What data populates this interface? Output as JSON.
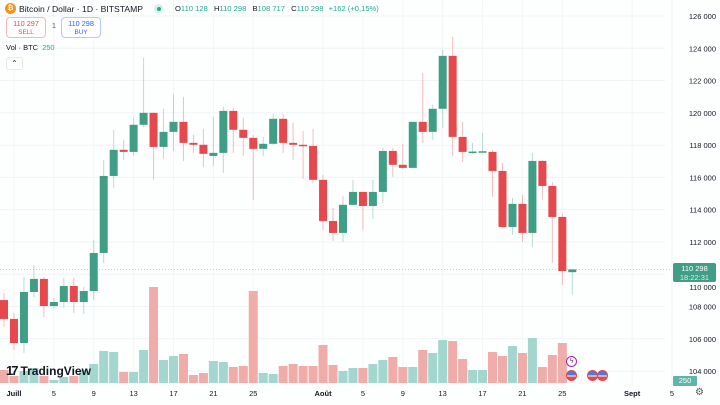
{
  "header": {
    "symbol_icon": "bitcoin-icon",
    "title": "Bitcoin / Dollar · 1D · BITSTAMP",
    "market_status": "open",
    "ohlc": {
      "o_label": "O",
      "o": "110 128",
      "h_label": "H",
      "h": "110 298",
      "l_label": "B",
      "l": "108 717",
      "c_label": "C",
      "c": "110 298",
      "change": "+162 (+0,15%)"
    }
  },
  "trade": {
    "sell_price": "110 297",
    "sell_label": "SELL",
    "spread": "1",
    "buy_price": "110 298",
    "buy_label": "BUY"
  },
  "volume_legend": {
    "label": "Vol · BTC",
    "value": "250"
  },
  "collapse_icon": "chevron-up-icon",
  "logo": "TradingView",
  "price_axis": {
    "labels": [
      "126 000",
      "124 000",
      "122 000",
      "120 000",
      "118 000",
      "116 000",
      "114 000",
      "112 000",
      "110 000",
      "108 000",
      "106 000",
      "104 000"
    ],
    "current_price": "110 298",
    "countdown": "18:22:31",
    "volume_value": "250"
  },
  "time_axis": {
    "labels": [
      {
        "text": "Juill",
        "day": "07-01",
        "bold": true
      },
      {
        "text": "5",
        "day": "07-05"
      },
      {
        "text": "9",
        "day": "07-09"
      },
      {
        "text": "13",
        "day": "07-13"
      },
      {
        "text": "17",
        "day": "07-17"
      },
      {
        "text": "21",
        "day": "07-21"
      },
      {
        "text": "25",
        "day": "07-25"
      },
      {
        "text": "Août",
        "day": "08-01",
        "bold": true
      },
      {
        "text": "5",
        "day": "08-05"
      },
      {
        "text": "9",
        "day": "08-09"
      },
      {
        "text": "13",
        "day": "08-13"
      },
      {
        "text": "17",
        "day": "08-17"
      },
      {
        "text": "21",
        "day": "08-21"
      },
      {
        "text": "25",
        "day": "08-25"
      },
      {
        "text": "Sept",
        "day": "09-01",
        "bold": true
      },
      {
        "text": "5",
        "day": "09-05"
      }
    ]
  },
  "events": [
    "flash-event-icon",
    "us-flag-event-icon",
    "us-flag-event-icon",
    "us-flag-event-icon"
  ],
  "colors": {
    "up": "#3f9e85",
    "down": "#e5484d",
    "vol_up": "#a3d6cf",
    "vol_down": "#efaca8"
  },
  "chart_data": {
    "type": "candlestick",
    "ylim": [
      103000,
      126600
    ],
    "ohlc": [
      [
        108400,
        108840,
        106730,
        107230
      ],
      [
        107230,
        107600,
        105300,
        105740
      ],
      [
        105740,
        109830,
        105120,
        108900
      ],
      [
        108900,
        110580,
        108590,
        109710
      ],
      [
        109710,
        109830,
        107350,
        108030
      ],
      [
        108030,
        108530,
        107910,
        108280
      ],
      [
        108280,
        109770,
        107910,
        109270
      ],
      [
        109270,
        109770,
        107600,
        108280
      ],
      [
        108280,
        109210,
        107540,
        108960
      ],
      [
        108960,
        112130,
        108410,
        111320
      ],
      [
        111320,
        117090,
        110700,
        116090
      ],
      [
        116090,
        118950,
        115350,
        117710
      ],
      [
        117710,
        118330,
        117090,
        117580
      ],
      [
        117580,
        119690,
        117330,
        119260
      ],
      [
        119260,
        123410,
        119130,
        120000
      ],
      [
        120000,
        120000,
        115850,
        117890
      ],
      [
        117890,
        120250,
        117150,
        118820
      ],
      [
        118820,
        121180,
        117640,
        119440
      ],
      [
        119440,
        120990,
        117020,
        118140
      ],
      [
        118140,
        118640,
        117520,
        118020
      ],
      [
        118020,
        119010,
        116650,
        117460
      ],
      [
        117330,
        119750,
        116710,
        117520
      ],
      [
        117520,
        120370,
        116280,
        120120
      ],
      [
        120120,
        120310,
        117520,
        118950
      ],
      [
        118950,
        119690,
        117330,
        118450
      ],
      [
        118450,
        118640,
        114610,
        117770
      ],
      [
        117770,
        118510,
        117330,
        118080
      ],
      [
        118080,
        119940,
        118020,
        119630
      ],
      [
        119630,
        119940,
        117520,
        118140
      ],
      [
        118140,
        119380,
        117090,
        118020
      ],
      [
        118020,
        118880,
        115910,
        117950
      ],
      [
        117950,
        119010,
        115660,
        115850
      ],
      [
        115850,
        116160,
        112750,
        113300
      ],
      [
        113300,
        114110,
        112060,
        112560
      ],
      [
        112560,
        114850,
        112000,
        114300
      ],
      [
        114300,
        115850,
        114300,
        115100
      ],
      [
        115100,
        115100,
        112750,
        114230
      ],
      [
        114230,
        115850,
        113430,
        115100
      ],
      [
        115100,
        117830,
        114420,
        117640
      ],
      [
        117640,
        117830,
        116030,
        116780
      ],
      [
        116780,
        118080,
        116530,
        116590
      ],
      [
        116590,
        119440,
        116590,
        119440
      ],
      [
        119440,
        122480,
        118140,
        118820
      ],
      [
        118820,
        120500,
        118330,
        120250
      ],
      [
        120250,
        123910,
        119070,
        123530
      ],
      [
        123530,
        124710,
        117330,
        118510
      ],
      [
        118510,
        119440,
        116960,
        117580
      ],
      [
        117580,
        118140,
        117460,
        117600
      ],
      [
        117600,
        118760,
        117520,
        117620
      ],
      [
        117580,
        117710,
        114790,
        116400
      ],
      [
        116400,
        116900,
        112870,
        112930
      ],
      [
        112930,
        114730,
        112440,
        114360
      ],
      [
        114360,
        114920,
        112000,
        112560
      ],
      [
        112560,
        117520,
        111690,
        117020
      ],
      [
        117020,
        117090,
        114610,
        115470
      ],
      [
        115470,
        115720,
        110700,
        113550
      ],
      [
        113550,
        113740,
        109340,
        110200
      ],
      [
        110128,
        110298,
        108717,
        110298
      ]
    ],
    "volume_relative": [
      13,
      7,
      12,
      15,
      7,
      3,
      6,
      7,
      13,
      19,
      32,
      31,
      11,
      11,
      33,
      96,
      23,
      27,
      29,
      8,
      10,
      22,
      21,
      16,
      17,
      92,
      10,
      9,
      17,
      19,
      17,
      17,
      38,
      18,
      12,
      15,
      15,
      19,
      23,
      26,
      16,
      16,
      33,
      30,
      43,
      42,
      24,
      13,
      13,
      31,
      27,
      37,
      30,
      45,
      16,
      28,
      40,
      0.3
    ]
  }
}
